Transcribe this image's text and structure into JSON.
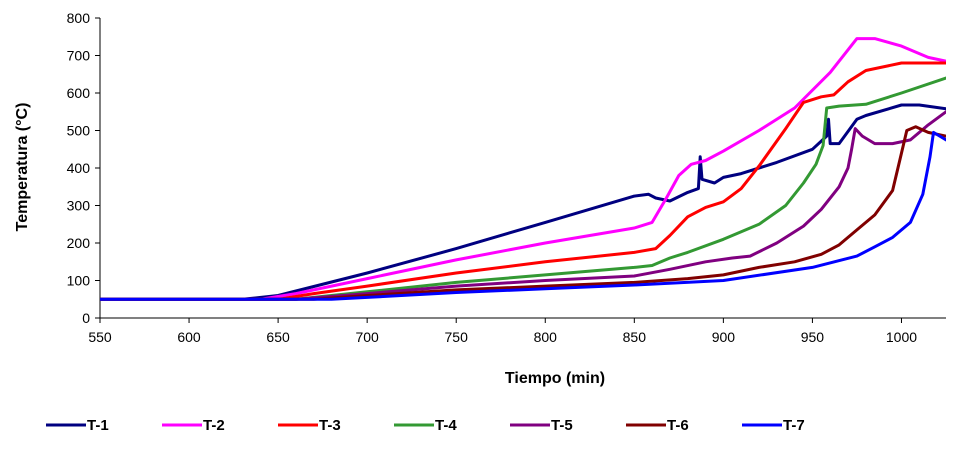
{
  "chart_data": {
    "type": "line",
    "title": "",
    "xlabel": "Tiempo (min)",
    "ylabel": "Temperatura (°C)",
    "xlim": [
      550,
      1025
    ],
    "ylim": [
      0,
      800
    ],
    "xticks": [
      550,
      600,
      650,
      700,
      750,
      800,
      850,
      900,
      950,
      1000
    ],
    "yticks": [
      0,
      100,
      200,
      300,
      400,
      500,
      600,
      700,
      800
    ],
    "grid": false,
    "legend": "bottom",
    "series": [
      {
        "name": "T-1",
        "color": "#000080",
        "points": [
          [
            550,
            50
          ],
          [
            630,
            50
          ],
          [
            650,
            60
          ],
          [
            700,
            120
          ],
          [
            750,
            185
          ],
          [
            800,
            255
          ],
          [
            850,
            325
          ],
          [
            858,
            330
          ],
          [
            862,
            320
          ],
          [
            870,
            312
          ],
          [
            880,
            335
          ],
          [
            886,
            345
          ],
          [
            887,
            430
          ],
          [
            888,
            370
          ],
          [
            895,
            360
          ],
          [
            900,
            375
          ],
          [
            910,
            385
          ],
          [
            930,
            415
          ],
          [
            950,
            450
          ],
          [
            958,
            485
          ],
          [
            959,
            530
          ],
          [
            960,
            465
          ],
          [
            965,
            465
          ],
          [
            975,
            530
          ],
          [
            980,
            540
          ],
          [
            1000,
            568
          ],
          [
            1010,
            568
          ],
          [
            1025,
            558
          ]
        ]
      },
      {
        "name": "T-2",
        "color": "#FF00FF",
        "points": [
          [
            550,
            50
          ],
          [
            640,
            50
          ],
          [
            660,
            65
          ],
          [
            700,
            105
          ],
          [
            750,
            155
          ],
          [
            800,
            200
          ],
          [
            850,
            240
          ],
          [
            860,
            255
          ],
          [
            868,
            320
          ],
          [
            875,
            380
          ],
          [
            882,
            410
          ],
          [
            890,
            420
          ],
          [
            900,
            445
          ],
          [
            920,
            500
          ],
          [
            940,
            560
          ],
          [
            960,
            655
          ],
          [
            975,
            745
          ],
          [
            985,
            745
          ],
          [
            1000,
            725
          ],
          [
            1015,
            695
          ],
          [
            1025,
            685
          ]
        ]
      },
      {
        "name": "T-3",
        "color": "#FF0000",
        "points": [
          [
            550,
            50
          ],
          [
            650,
            50
          ],
          [
            670,
            65
          ],
          [
            700,
            85
          ],
          [
            750,
            120
          ],
          [
            800,
            150
          ],
          [
            850,
            175
          ],
          [
            862,
            185
          ],
          [
            870,
            220
          ],
          [
            880,
            270
          ],
          [
            890,
            295
          ],
          [
            900,
            310
          ],
          [
            910,
            345
          ],
          [
            920,
            405
          ],
          [
            935,
            505
          ],
          [
            945,
            575
          ],
          [
            955,
            590
          ],
          [
            962,
            595
          ],
          [
            970,
            630
          ],
          [
            980,
            660
          ],
          [
            1000,
            680
          ],
          [
            1025,
            680
          ]
        ]
      },
      {
        "name": "T-4",
        "color": "#339933",
        "points": [
          [
            550,
            50
          ],
          [
            660,
            50
          ],
          [
            700,
            70
          ],
          [
            750,
            95
          ],
          [
            800,
            115
          ],
          [
            850,
            135
          ],
          [
            860,
            140
          ],
          [
            870,
            160
          ],
          [
            880,
            175
          ],
          [
            900,
            210
          ],
          [
            920,
            250
          ],
          [
            935,
            300
          ],
          [
            945,
            360
          ],
          [
            952,
            410
          ],
          [
            956,
            460
          ],
          [
            958,
            560
          ],
          [
            965,
            565
          ],
          [
            980,
            570
          ],
          [
            1000,
            600
          ],
          [
            1025,
            640
          ]
        ]
      },
      {
        "name": "T-5",
        "color": "#800080",
        "points": [
          [
            550,
            50
          ],
          [
            660,
            50
          ],
          [
            700,
            65
          ],
          [
            750,
            85
          ],
          [
            800,
            100
          ],
          [
            850,
            112
          ],
          [
            870,
            130
          ],
          [
            890,
            150
          ],
          [
            905,
            160
          ],
          [
            915,
            165
          ],
          [
            930,
            200
          ],
          [
            945,
            245
          ],
          [
            955,
            290
          ],
          [
            965,
            350
          ],
          [
            970,
            400
          ],
          [
            972,
            450
          ],
          [
            974,
            505
          ],
          [
            978,
            485
          ],
          [
            985,
            465
          ],
          [
            995,
            465
          ],
          [
            1005,
            475
          ],
          [
            1015,
            515
          ],
          [
            1025,
            550
          ]
        ]
      },
      {
        "name": "T-6",
        "color": "#800000",
        "points": [
          [
            550,
            50
          ],
          [
            670,
            50
          ],
          [
            700,
            60
          ],
          [
            750,
            75
          ],
          [
            800,
            85
          ],
          [
            850,
            95
          ],
          [
            880,
            105
          ],
          [
            900,
            115
          ],
          [
            920,
            135
          ],
          [
            940,
            150
          ],
          [
            955,
            170
          ],
          [
            965,
            195
          ],
          [
            975,
            235
          ],
          [
            985,
            275
          ],
          [
            995,
            340
          ],
          [
            1000,
            440
          ],
          [
            1003,
            500
          ],
          [
            1008,
            510
          ],
          [
            1015,
            495
          ],
          [
            1025,
            485
          ]
        ]
      },
      {
        "name": "T-7",
        "color": "#0000FF",
        "points": [
          [
            550,
            50
          ],
          [
            680,
            50
          ],
          [
            700,
            55
          ],
          [
            750,
            68
          ],
          [
            800,
            78
          ],
          [
            850,
            88
          ],
          [
            900,
            100
          ],
          [
            950,
            135
          ],
          [
            975,
            165
          ],
          [
            985,
            190
          ],
          [
            995,
            215
          ],
          [
            1005,
            255
          ],
          [
            1012,
            330
          ],
          [
            1016,
            430
          ],
          [
            1018,
            495
          ],
          [
            1025,
            475
          ]
        ]
      }
    ]
  }
}
